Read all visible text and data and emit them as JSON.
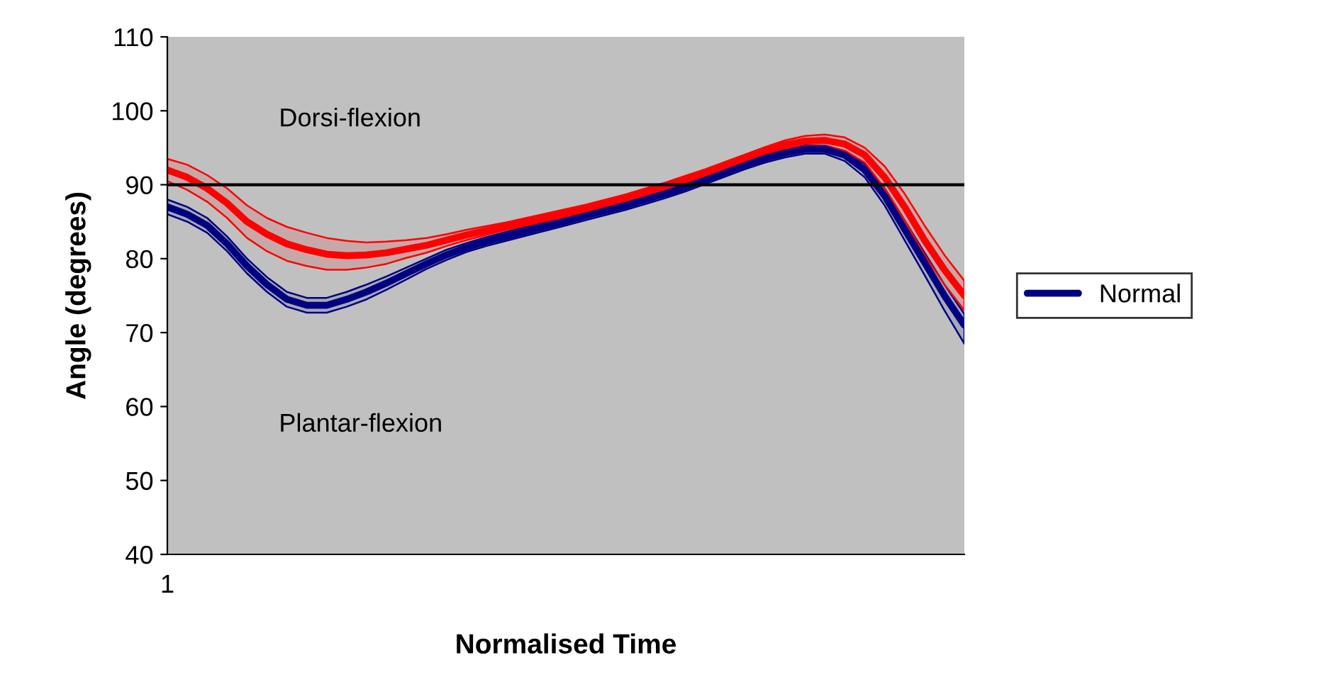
{
  "chart_data": {
    "type": "line",
    "xlabel": "Normalised Time",
    "ylabel": "Angle (degrees)",
    "categories": [
      "1",
      null,
      null,
      null,
      null,
      null,
      null,
      null,
      null,
      null,
      null,
      null,
      null,
      null,
      null,
      null,
      null,
      null,
      null,
      null,
      null,
      null,
      null,
      null,
      null,
      null,
      null,
      null,
      null,
      null,
      null,
      null,
      null,
      null,
      null,
      null,
      null,
      null,
      null,
      null,
      null
    ],
    "ylim": [
      40,
      110
    ],
    "yticks": [
      40,
      50,
      60,
      70,
      80,
      90,
      100,
      110
    ],
    "grid": false,
    "legend": "right",
    "ref_lines": [
      {
        "axis": "y",
        "value": 90,
        "color": "#000000"
      }
    ],
    "annotations": [
      "Dorsi-flexion",
      "Plantar-flexion"
    ],
    "series": [
      {
        "name": "Normal",
        "color": "#000080",
        "values": [
          87,
          86,
          84.5,
          82,
          79,
          76.5,
          74.5,
          73.7,
          73.7,
          74.5,
          75.5,
          76.7,
          78,
          79.3,
          80.5,
          81.5,
          82.3,
          83,
          83.7,
          84.4,
          85.1,
          85.8,
          86.5,
          87.2,
          88,
          88.8,
          89.7,
          90.7,
          91.7,
          92.7,
          93.6,
          94.3,
          94.8,
          94.8,
          94,
          92,
          88.5,
          84,
          79.5,
          75,
          71
        ],
        "upper": [
          88,
          87,
          85.5,
          83,
          80,
          77.5,
          75.5,
          74.7,
          74.7,
          75.5,
          76.5,
          77.6,
          78.8,
          80,
          81.2,
          82.1,
          82.9,
          83.6,
          84.3,
          85,
          85.7,
          86.4,
          87.1,
          87.8,
          88.6,
          89.4,
          90.3,
          91.3,
          92.2,
          93.2,
          94.1,
          94.8,
          95.3,
          95.3,
          94.6,
          92.8,
          89.5,
          85.2,
          80.8,
          76.5,
          72.5
        ],
        "lower": [
          86,
          85,
          83.5,
          81,
          78,
          75.5,
          73.5,
          72.7,
          72.7,
          73.5,
          74.5,
          75.8,
          77.2,
          78.6,
          79.8,
          80.9,
          81.7,
          82.4,
          83.1,
          83.8,
          84.5,
          85.2,
          85.9,
          86.6,
          87.4,
          88.2,
          89.1,
          90.1,
          91.1,
          92.1,
          93,
          93.7,
          94.2,
          94.2,
          93.2,
          91,
          87.2,
          82.5,
          77.8,
          73,
          68.5
        ]
      },
      {
        "color": "#ff0000",
        "values": [
          92,
          91,
          89.5,
          87.5,
          85,
          83.3,
          82,
          81.2,
          80.6,
          80.4,
          80.5,
          80.8,
          81.3,
          81.8,
          82.5,
          83.2,
          83.8,
          84.4,
          85,
          85.6,
          86.2,
          86.8,
          87.5,
          88.2,
          89,
          89.8,
          90.7,
          91.6,
          92.6,
          93.6,
          94.6,
          95.4,
          95.9,
          96,
          95.5,
          94,
          91,
          87,
          82.5,
          78.5,
          75
        ],
        "upper": [
          93.5,
          92.7,
          91.3,
          89.5,
          87.2,
          85.5,
          84.3,
          83.5,
          82.8,
          82.4,
          82.2,
          82.3,
          82.5,
          82.8,
          83.3,
          83.9,
          84.4,
          84.9,
          85.5,
          86.1,
          86.7,
          87.3,
          88,
          88.7,
          89.5,
          90.3,
          91.2,
          92.1,
          93.1,
          94.1,
          95.1,
          96,
          96.6,
          96.8,
          96.4,
          95,
          92.5,
          88.8,
          84.5,
          80.5,
          77
        ],
        "lower": [
          90.5,
          89.3,
          87.7,
          85.5,
          82.8,
          81,
          79.7,
          79,
          78.5,
          78.5,
          78.8,
          79.3,
          80.1,
          80.8,
          81.7,
          82.5,
          83.2,
          83.9,
          84.5,
          85.1,
          85.7,
          86.3,
          87,
          87.7,
          88.5,
          89.3,
          90.2,
          91.1,
          92.1,
          93.1,
          94.1,
          94.8,
          95.2,
          95.2,
          94.6,
          93,
          89.5,
          85.2,
          80.5,
          76.5,
          73
        ]
      }
    ]
  }
}
